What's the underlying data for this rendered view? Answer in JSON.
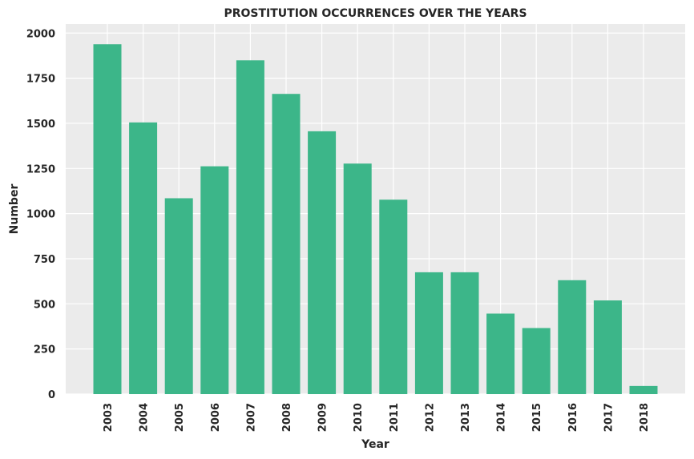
{
  "chart_data": {
    "type": "bar",
    "title": "PROSTITUTION OCCURRENCES OVER THE YEARS",
    "xlabel": "Year",
    "ylabel": "Number",
    "categories": [
      "2003",
      "2004",
      "2005",
      "2006",
      "2007",
      "2008",
      "2009",
      "2010",
      "2011",
      "2012",
      "2013",
      "2014",
      "2015",
      "2016",
      "2017",
      "2018"
    ],
    "values": [
      1938,
      1505,
      1085,
      1262,
      1849,
      1663,
      1456,
      1277,
      1077,
      675,
      675,
      446,
      366,
      631,
      519,
      45
    ],
    "ylim": [
      0,
      2050
    ],
    "yticks": [
      "0",
      "250",
      "500",
      "750",
      "1000",
      "1250",
      "1500",
      "1750",
      "2000"
    ],
    "grid": true,
    "colors": {
      "bar": "#3cb689",
      "plot_bg": "#ebebeb",
      "grid": "#ffffff",
      "text": "#262626"
    }
  }
}
